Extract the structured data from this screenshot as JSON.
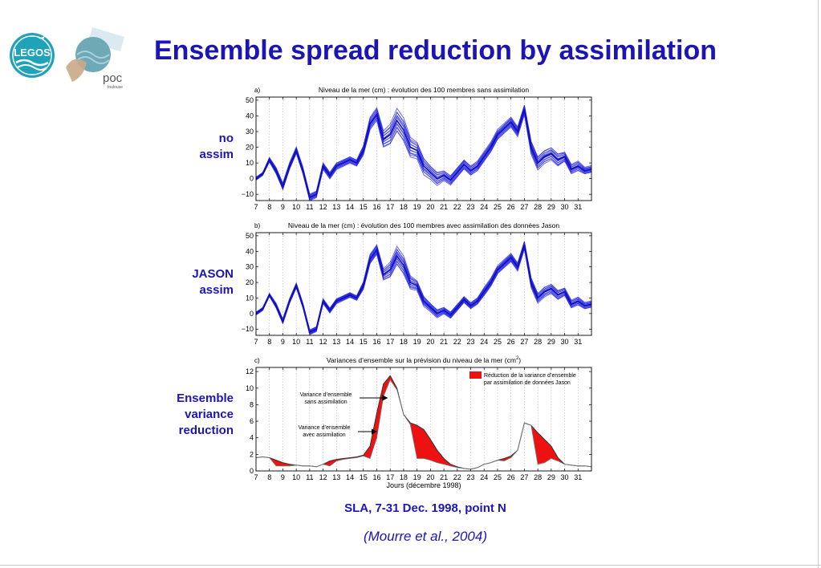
{
  "header": {
    "title": "Ensemble spread reduction by assimilation",
    "logos": {
      "legos": "LEGOS",
      "poc": "poc",
      "poc_sub": "toulouse"
    }
  },
  "row_labels": [
    {
      "lines": [
        "no",
        "assim"
      ]
    },
    {
      "lines": [
        "JASON",
        "assim"
      ]
    },
    {
      "lines": [
        "Ensemble",
        "variance",
        "reduction"
      ]
    }
  ],
  "footer": {
    "caption": "SLA, 7-31 Dec. 1998, point N",
    "citation": "(Mourre et al., 2004)"
  },
  "colors": {
    "text_blue": "#1c15b4",
    "ensemble_blue": "#2222e8",
    "reduction_red": "#ee1111"
  },
  "chart_data": [
    {
      "type": "line",
      "panel_letter": "a)",
      "title": "Niveau de la mer (cm) : évolution des 100 membres sans assimilation",
      "x": [
        7,
        7.5,
        8,
        8.5,
        9,
        9.5,
        10,
        10.5,
        11,
        11.5,
        12,
        12.5,
        13,
        13.5,
        14,
        14.5,
        15,
        15.5,
        16,
        16.5,
        17,
        17.5,
        18,
        18.5,
        19,
        19.5,
        20,
        20.5,
        21,
        21.5,
        22,
        22.5,
        23,
        23.5,
        24,
        24.5,
        25,
        25.5,
        26,
        26.5,
        27,
        27.5,
        28,
        28.5,
        29,
        29.5,
        30,
        30.5,
        31,
        31.5,
        32
      ],
      "mean": [
        0,
        3,
        12,
        5,
        -5,
        8,
        18,
        5,
        -12,
        -10,
        8,
        2,
        8,
        10,
        12,
        10,
        18,
        35,
        41,
        25,
        28,
        37,
        31,
        20,
        18,
        8,
        4,
        0,
        2,
        -1,
        4,
        9,
        5,
        8,
        14,
        20,
        28,
        32,
        36,
        30,
        44,
        20,
        10,
        14,
        16,
        12,
        14,
        6,
        8,
        5,
        6
      ],
      "spread": [
        1,
        1,
        1.5,
        2,
        2,
        2,
        2,
        2,
        2,
        2,
        2,
        2,
        2,
        2,
        2,
        2,
        3,
        4,
        4,
        5,
        6,
        7,
        7,
        6,
        5,
        5,
        4,
        4,
        3,
        3,
        3,
        3,
        3,
        3,
        3,
        3,
        3,
        3,
        3,
        3,
        3,
        4,
        4,
        4,
        4,
        4,
        3,
        3,
        3,
        2,
        2
      ],
      "ylim": [
        -14,
        52
      ],
      "yticks": [
        -10,
        0,
        10,
        20,
        30,
        40,
        50
      ],
      "xticks": [
        7,
        8,
        9,
        10,
        11,
        12,
        13,
        14,
        15,
        16,
        17,
        18,
        19,
        20,
        21,
        22,
        23,
        24,
        25,
        26,
        27,
        28,
        29,
        30,
        31
      ],
      "xlim": [
        7,
        32
      ],
      "ytick_labels": [
        "−10",
        "0",
        "10",
        "20",
        "30",
        "40",
        "50"
      ],
      "xtick_labels": [
        "7",
        "8",
        "9",
        "10",
        "11",
        "12",
        "13",
        "14",
        "15",
        "16",
        "17",
        "18",
        "19",
        "20",
        "21",
        "22",
        "23",
        "24",
        "25",
        "26",
        "27",
        "28",
        "29",
        "30",
        "31"
      ],
      "grid": true
    },
    {
      "type": "line",
      "panel_letter": "b)",
      "title": "Niveau de la mer (cm) : évolution des 100 membres avec assimilation des données Jason",
      "x": [
        7,
        7.5,
        8,
        8.5,
        9,
        9.5,
        10,
        10.5,
        11,
        11.5,
        12,
        12.5,
        13,
        13.5,
        14,
        14.5,
        15,
        15.5,
        16,
        16.5,
        17,
        17.5,
        18,
        18.5,
        19,
        19.5,
        20,
        20.5,
        21,
        21.5,
        22,
        22.5,
        23,
        23.5,
        24,
        24.5,
        25,
        25.5,
        26,
        26.5,
        27,
        27.5,
        28,
        28.5,
        29,
        29.5,
        30,
        30.5,
        31,
        31.5,
        32
      ],
      "mean": [
        0,
        3,
        12,
        5,
        -5,
        8,
        18,
        5,
        -12,
        -10,
        8,
        2,
        8,
        10,
        12,
        10,
        18,
        35,
        41,
        25,
        28,
        37,
        31,
        20,
        18,
        8,
        4,
        0,
        2,
        -1,
        4,
        9,
        5,
        8,
        14,
        20,
        28,
        32,
        36,
        30,
        44,
        20,
        10,
        14,
        16,
        12,
        14,
        6,
        8,
        5,
        6
      ],
      "spread": [
        1,
        1,
        1,
        1.5,
        1.5,
        1.5,
        1.5,
        1.5,
        1.5,
        1.5,
        1.5,
        1.5,
        1.5,
        1.5,
        1.5,
        1.5,
        2.5,
        3,
        3,
        3.5,
        4.5,
        5.5,
        5.5,
        4,
        3,
        3,
        2.5,
        2.5,
        2,
        2,
        2,
        2,
        2,
        2,
        2.5,
        2.5,
        2.5,
        2.5,
        2.5,
        2.5,
        2.5,
        3,
        3,
        3,
        3,
        3,
        2.5,
        2.5,
        2.5,
        2,
        2
      ],
      "ylim": [
        -14,
        52
      ],
      "yticks": [
        -10,
        0,
        10,
        20,
        30,
        40,
        50
      ],
      "xticks": [
        7,
        8,
        9,
        10,
        11,
        12,
        13,
        14,
        15,
        16,
        17,
        18,
        19,
        20,
        21,
        22,
        23,
        24,
        25,
        26,
        27,
        28,
        29,
        30,
        31
      ],
      "xlim": [
        7,
        32
      ],
      "ytick_labels": [
        "−10",
        "0",
        "10",
        "20",
        "30",
        "40",
        "50"
      ],
      "xtick_labels": [
        "7",
        "8",
        "9",
        "10",
        "11",
        "12",
        "13",
        "14",
        "15",
        "16",
        "17",
        "18",
        "19",
        "20",
        "21",
        "22",
        "23",
        "24",
        "25",
        "26",
        "27",
        "28",
        "29",
        "30",
        "31"
      ],
      "grid": true
    },
    {
      "type": "area",
      "panel_letter": "c)",
      "title": "Variances d’ensemble sur la prévision du niveau de la mer (cm",
      "title_superscript": "2",
      "title_close": ")",
      "xlabel": "Jours (décembre 1998)",
      "x": [
        7,
        7.5,
        8,
        8.5,
        9,
        9.5,
        10,
        10.5,
        11,
        11.5,
        12,
        12.5,
        13,
        13.5,
        14,
        14.5,
        15,
        15.5,
        16,
        16.5,
        17,
        17.5,
        18,
        18.5,
        19,
        19.5,
        20,
        20.5,
        21,
        21.5,
        22,
        22.5,
        23,
        23.5,
        24,
        24.5,
        25,
        25.5,
        26,
        26.5,
        27,
        27.5,
        28,
        28.5,
        29,
        29.5,
        30,
        30.5,
        31,
        31.5,
        32
      ],
      "series": [
        {
          "name": "Variance d’ensemble sans assimilation",
          "values": [
            1.6,
            1.7,
            1.6,
            1.3,
            1.0,
            0.8,
            0.7,
            0.6,
            0.6,
            0.5,
            0.8,
            1.2,
            1.4,
            1.5,
            1.6,
            1.7,
            1.9,
            3.0,
            7.0,
            10.5,
            11.5,
            10.0,
            6.8,
            5.8,
            5.5,
            5.0,
            3.8,
            2.5,
            1.5,
            0.8,
            0.5,
            0.3,
            0.2,
            0.4,
            0.8,
            1.0,
            1.3,
            1.5,
            1.8,
            2.5,
            5.8,
            5.5,
            4.6,
            3.8,
            3.0,
            1.6,
            0.8,
            0.7,
            0.6,
            0.6,
            0.5
          ]
        },
        {
          "name": "Variance d’ensemble avec assimilation",
          "values": [
            1.6,
            1.7,
            1.6,
            0.6,
            0.6,
            0.6,
            0.7,
            0.6,
            0.6,
            0.5,
            0.8,
            0.6,
            1.2,
            1.4,
            1.5,
            1.6,
            1.8,
            1.5,
            4.0,
            9.0,
            11.0,
            9.8,
            6.8,
            5.6,
            1.5,
            1.5,
            1.3,
            1.0,
            0.8,
            0.6,
            0.4,
            0.3,
            0.2,
            0.4,
            0.8,
            1.0,
            1.3,
            1.2,
            1.6,
            2.5,
            5.8,
            5.5,
            0.8,
            1.0,
            1.5,
            1.2,
            0.8,
            0.7,
            0.6,
            0.6,
            0.5
          ]
        }
      ],
      "fill_between_color": "#ee1111",
      "legend": {
        "label_lines": [
          "Réduction de la variance d’ensemble",
          "par assimilation de données Jason"
        ],
        "placement": "top-right"
      },
      "annotations": [
        {
          "lines": [
            "Variance d’ensemble",
            "sans assimilation"
          ],
          "arrow_to_day": 16.9
        },
        {
          "lines": [
            "Variance d’ensemble",
            "avec assimilation"
          ],
          "arrow_to_day": 16.1
        }
      ],
      "ylim": [
        0,
        12.5
      ],
      "yticks": [
        0,
        2,
        4,
        6,
        8,
        10,
        12
      ],
      "xticks": [
        7,
        8,
        9,
        10,
        11,
        12,
        13,
        14,
        15,
        16,
        17,
        18,
        19,
        20,
        21,
        22,
        23,
        24,
        25,
        26,
        27,
        28,
        29,
        30,
        31
      ],
      "xlim": [
        7,
        32
      ],
      "ytick_labels": [
        "0",
        "2",
        "4",
        "6",
        "8",
        "10",
        "12"
      ],
      "xtick_labels": [
        "7",
        "8",
        "9",
        "10",
        "11",
        "12",
        "13",
        "14",
        "15",
        "16",
        "17",
        "18",
        "19",
        "20",
        "21",
        "22",
        "23",
        "24",
        "25",
        "26",
        "27",
        "28",
        "29",
        "30",
        "31"
      ],
      "grid": true
    }
  ]
}
